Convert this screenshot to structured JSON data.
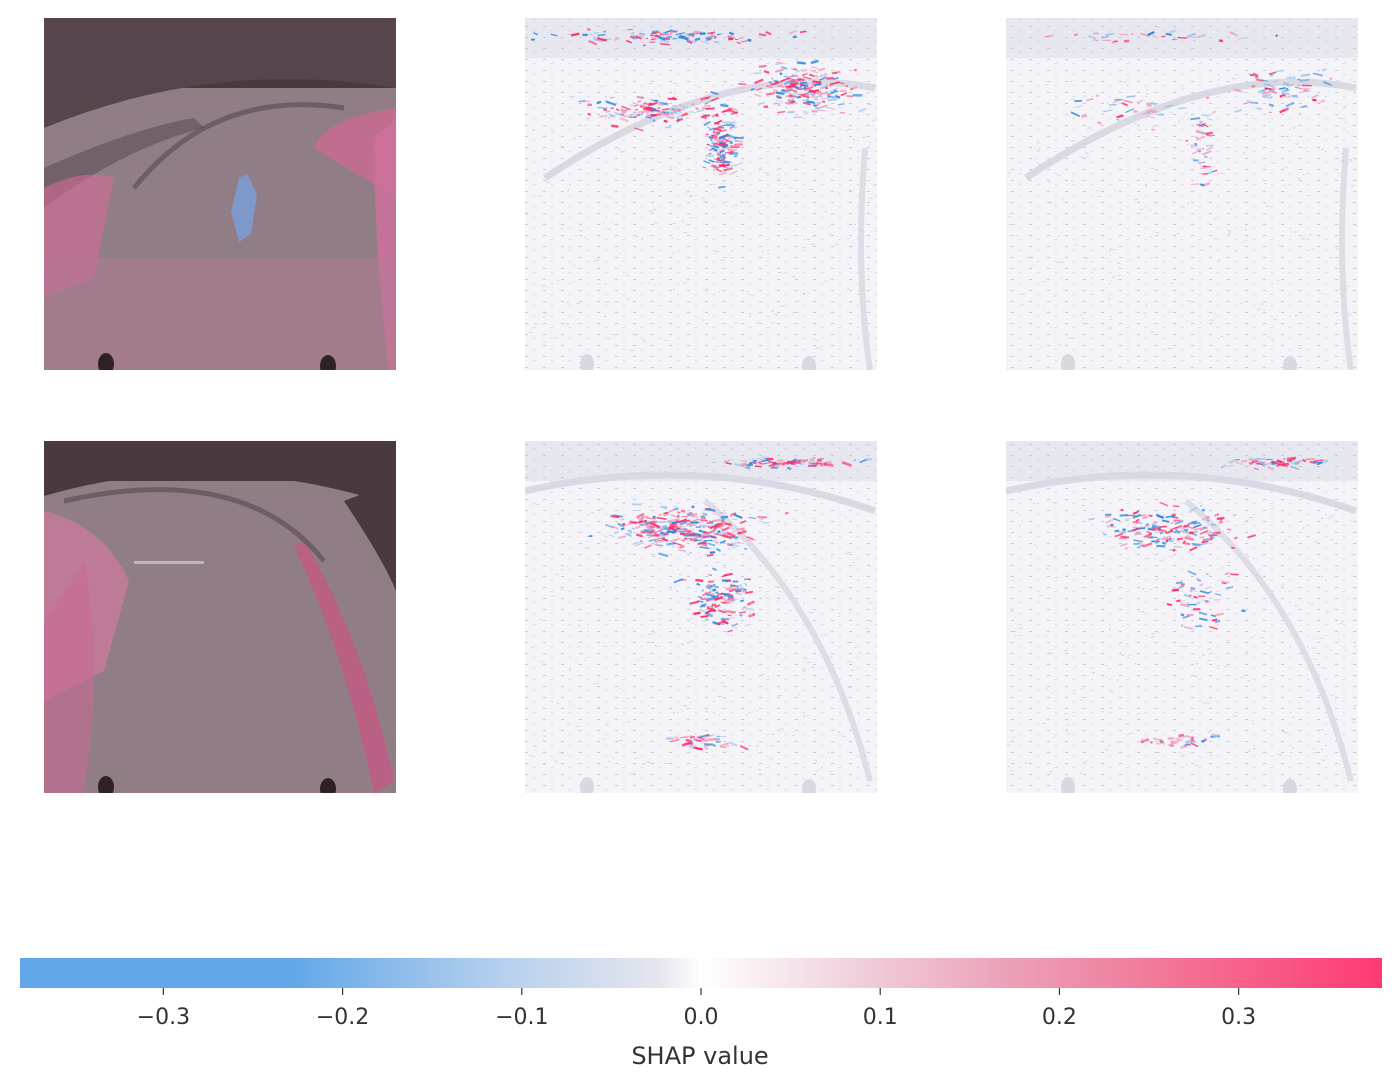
{
  "chart_data": {
    "type": "heatmap",
    "description_grid": {
      "rows": 2,
      "columns": 3,
      "column_roles": [
        "input-image",
        "shap-output-1",
        "shap-output-2"
      ]
    },
    "images": [
      {
        "row": 0,
        "col": 0,
        "kind": "input-image",
        "scene": "curved-track-with-obstacle"
      },
      {
        "row": 0,
        "col": 1,
        "kind": "shap-map",
        "intensity": "high"
      },
      {
        "row": 0,
        "col": 2,
        "kind": "shap-map",
        "intensity": "low"
      },
      {
        "row": 1,
        "col": 0,
        "kind": "input-image",
        "scene": "curved-track-right-turn"
      },
      {
        "row": 1,
        "col": 1,
        "kind": "shap-map",
        "intensity": "high"
      },
      {
        "row": 1,
        "col": 2,
        "kind": "shap-map",
        "intensity": "medium"
      }
    ],
    "colorbar": {
      "label": "SHAP value",
      "range": [
        -0.38,
        0.38
      ],
      "ticks": [
        -0.3,
        -0.2,
        -0.1,
        0.0,
        0.1,
        0.2,
        0.3
      ],
      "tick_labels": [
        "−0.3",
        "−0.2",
        "−0.1",
        "0.0",
        "0.1",
        "0.2",
        "0.3"
      ],
      "colors": {
        "negative": "#1e88e5",
        "neutral": "#ffffff",
        "positive": "#ff0d57"
      }
    },
    "grid": false,
    "legend": "none"
  }
}
